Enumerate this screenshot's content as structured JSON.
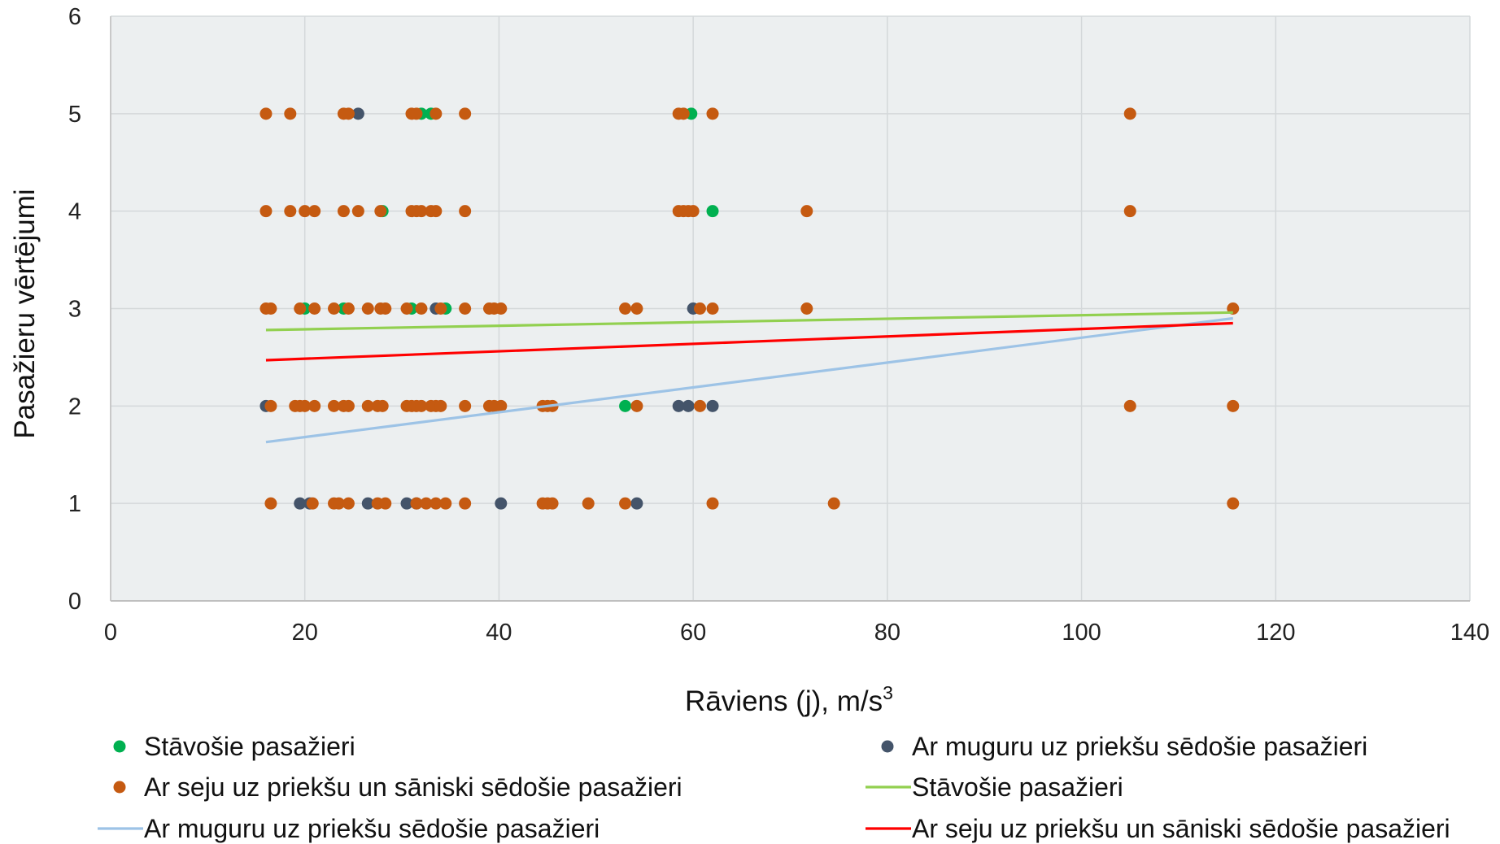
{
  "chart_data": {
    "type": "scatter",
    "title": "",
    "xlabel": "Rāviens (j), m/s",
    "xlabel_sup": "3",
    "ylabel": "Pasažieru vērtējumi",
    "xlim": [
      0,
      140
    ],
    "ylim": [
      0,
      6
    ],
    "x_ticks": [
      "0",
      "20",
      "40",
      "60",
      "80",
      "100",
      "120",
      "140"
    ],
    "y_ticks": [
      "0",
      "1",
      "2",
      "3",
      "4",
      "5",
      "6"
    ],
    "grid": true,
    "plot_background": "#eceff0",
    "legend_position": "bottom",
    "series": [
      {
        "name": "Stāvošie pasažieri",
        "kind": "points",
        "color": "#00b050",
        "points": [
          [
            32,
            5
          ],
          [
            33,
            5
          ],
          [
            59.8,
            5
          ],
          [
            28,
            4
          ],
          [
            62,
            4
          ],
          [
            20,
            3
          ],
          [
            24,
            3
          ],
          [
            31,
            3
          ],
          [
            34.5,
            3
          ],
          [
            53,
            2
          ]
        ]
      },
      {
        "name": "Ar muguru uz priekšu sēdošie pasažieri",
        "kind": "points",
        "color": "#44546a",
        "points": [
          [
            25.5,
            5
          ],
          [
            33.5,
            3
          ],
          [
            60,
            3
          ],
          [
            16,
            2
          ],
          [
            58.5,
            2
          ],
          [
            59.5,
            2
          ],
          [
            62,
            2
          ],
          [
            19.5,
            1
          ],
          [
            20.5,
            1
          ],
          [
            26.5,
            1
          ],
          [
            30.5,
            1
          ],
          [
            31.5,
            1
          ],
          [
            40.2,
            1
          ],
          [
            54.2,
            1
          ]
        ]
      },
      {
        "name": "Ar seju uz priekšu un sāniski sēdošie pasažieri",
        "kind": "points",
        "color": "#c55a11",
        "points": [
          [
            16,
            5
          ],
          [
            18.5,
            5
          ],
          [
            24,
            5
          ],
          [
            24.5,
            5
          ],
          [
            31,
            5
          ],
          [
            31.5,
            5
          ],
          [
            33.5,
            5
          ],
          [
            36.5,
            5
          ],
          [
            58.5,
            5
          ],
          [
            59,
            5
          ],
          [
            62,
            5
          ],
          [
            105,
            5
          ],
          [
            16,
            4
          ],
          [
            18.5,
            4
          ],
          [
            20,
            4
          ],
          [
            21,
            4
          ],
          [
            24,
            4
          ],
          [
            25.5,
            4
          ],
          [
            27.8,
            4
          ],
          [
            31,
            4
          ],
          [
            31.5,
            4
          ],
          [
            32,
            4
          ],
          [
            33,
            4
          ],
          [
            33.5,
            4
          ],
          [
            36.5,
            4
          ],
          [
            58.5,
            4
          ],
          [
            59,
            4
          ],
          [
            59.5,
            4
          ],
          [
            60,
            4
          ],
          [
            71.7,
            4
          ],
          [
            105,
            4
          ],
          [
            16,
            3
          ],
          [
            16.5,
            3
          ],
          [
            19.5,
            3
          ],
          [
            21,
            3
          ],
          [
            23,
            3
          ],
          [
            24.5,
            3
          ],
          [
            26.5,
            3
          ],
          [
            27.8,
            3
          ],
          [
            28.3,
            3
          ],
          [
            30.5,
            3
          ],
          [
            32,
            3
          ],
          [
            34,
            3
          ],
          [
            36.5,
            3
          ],
          [
            39,
            3
          ],
          [
            39.5,
            3
          ],
          [
            40.2,
            3
          ],
          [
            53,
            3
          ],
          [
            54.2,
            3
          ],
          [
            60.7,
            3
          ],
          [
            62,
            3
          ],
          [
            71.7,
            3
          ],
          [
            115.6,
            3
          ],
          [
            16.5,
            2
          ],
          [
            19,
            2
          ],
          [
            19.5,
            2
          ],
          [
            20,
            2
          ],
          [
            21,
            2
          ],
          [
            23,
            2
          ],
          [
            24,
            2
          ],
          [
            24.5,
            2
          ],
          [
            26.5,
            2
          ],
          [
            27.5,
            2
          ],
          [
            28,
            2
          ],
          [
            30.5,
            2
          ],
          [
            31,
            2
          ],
          [
            31.5,
            2
          ],
          [
            32,
            2
          ],
          [
            33,
            2
          ],
          [
            33.5,
            2
          ],
          [
            34,
            2
          ],
          [
            36.5,
            2
          ],
          [
            39,
            2
          ],
          [
            39.5,
            2
          ],
          [
            40.2,
            2
          ],
          [
            44.5,
            2
          ],
          [
            45,
            2
          ],
          [
            45.5,
            2
          ],
          [
            54.2,
            2
          ],
          [
            60.7,
            2
          ],
          [
            105,
            2
          ],
          [
            115.6,
            2
          ],
          [
            16.5,
            1
          ],
          [
            20.8,
            1
          ],
          [
            23,
            1
          ],
          [
            23.5,
            1
          ],
          [
            24.5,
            1
          ],
          [
            27.5,
            1
          ],
          [
            28.3,
            1
          ],
          [
            31.5,
            1
          ],
          [
            32.5,
            1
          ],
          [
            33.5,
            1
          ],
          [
            34.5,
            1
          ],
          [
            36.5,
            1
          ],
          [
            44.5,
            1
          ],
          [
            45,
            1
          ],
          [
            45.5,
            1
          ],
          [
            49.2,
            1
          ],
          [
            53,
            1
          ],
          [
            62,
            1
          ],
          [
            74.5,
            1
          ],
          [
            115.6,
            1
          ]
        ]
      },
      {
        "name": "Stāvošie pasažieri",
        "kind": "trendline",
        "color": "#92d050",
        "points": [
          [
            16,
            2.78
          ],
          [
            115.6,
            2.96
          ]
        ]
      },
      {
        "name": "Ar muguru uz priekšu sēdošie pasažieri",
        "kind": "trendline",
        "color": "#9dc3e6",
        "points": [
          [
            16,
            1.63
          ],
          [
            115.6,
            2.9
          ]
        ]
      },
      {
        "name": "Ar seju uz priekšu un sāniski sēdošie pasažieri",
        "kind": "trendline",
        "color": "#ff0000",
        "points": [
          [
            16,
            2.47
          ],
          [
            115.6,
            2.85
          ]
        ]
      }
    ]
  }
}
